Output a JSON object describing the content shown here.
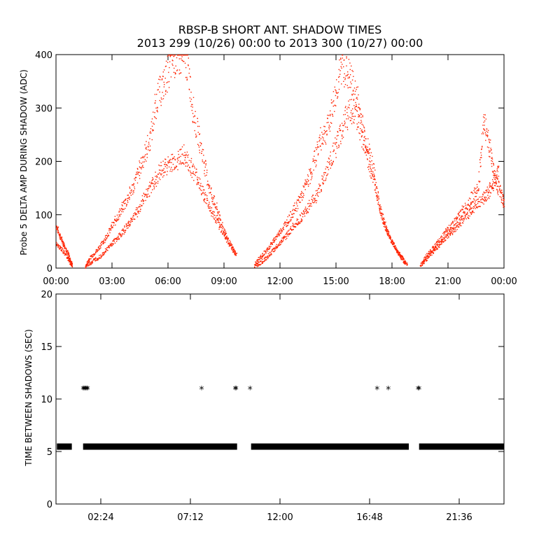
{
  "title": {
    "line1": "RBSP-B SHORT ANT. SHADOW TIMES",
    "line2": "2013 299 (10/26) 00:00 to 2013 300 (10/27) 00:00"
  },
  "chart_data": [
    {
      "type": "scatter",
      "ylabel": "Probe 5 DELTA AMP DURING SHADOW (ADC)",
      "xlabel": "",
      "xlim": [
        0,
        24
      ],
      "ylim": [
        0,
        400
      ],
      "xtick_labels": [
        "00:00",
        "03:00",
        "06:00",
        "09:00",
        "12:00",
        "15:00",
        "18:00",
        "21:00",
        "00:00"
      ],
      "ytick_labels": [
        "0",
        "100",
        "200",
        "300",
        "400"
      ],
      "grid": false,
      "marker_color": "#ff2200",
      "series": [
        {
          "x": [
            0.0,
            0.2,
            0.4,
            0.6,
            0.75,
            0.85,
            1.55,
            1.8,
            2.2,
            2.6,
            3.0,
            3.4,
            3.8,
            4.2,
            4.6,
            5.0,
            5.4,
            5.8,
            6.2,
            6.6,
            7.0,
            7.4,
            7.8,
            8.2,
            8.6,
            9.0,
            9.4,
            9.65,
            10.6,
            10.9,
            11.3,
            11.7,
            12.1,
            12.5,
            12.9,
            13.3,
            13.7,
            14.1,
            14.5,
            14.9,
            15.3,
            15.7,
            16.1,
            16.5,
            16.9,
            17.3,
            17.6,
            17.9,
            18.2,
            18.5,
            18.8,
            19.5,
            19.8,
            20.2,
            20.6,
            21.0,
            21.4,
            21.8,
            22.2,
            22.6,
            22.9,
            23.2,
            23.5,
            23.8,
            24.0
          ],
          "y": [
            80,
            60,
            45,
            30,
            15,
            5,
            3,
            20,
            35,
            55,
            80,
            105,
            130,
            160,
            200,
            240,
            320,
            350,
            390,
            395,
            385,
            280,
            220,
            150,
            110,
            70,
            40,
            25,
            5,
            20,
            35,
            55,
            75,
            95,
            120,
            150,
            185,
            240,
            260,
            320,
            380,
            360,
            320,
            250,
            200,
            120,
            80,
            55,
            35,
            20,
            8,
            5,
            22,
            40,
            55,
            75,
            90,
            110,
            130,
            150,
            280,
            230,
            170,
            140,
            120
          ]
        },
        {
          "x": [
            0.0,
            0.3,
            0.6,
            0.85,
            1.6,
            2.0,
            2.4,
            2.8,
            3.2,
            3.6,
            4.0,
            4.4,
            4.8,
            5.2,
            5.6,
            6.0,
            6.4,
            6.8,
            7.2,
            7.6,
            8.0,
            8.4,
            8.8,
            9.2,
            9.6,
            10.7,
            11.1,
            11.5,
            11.9,
            12.3,
            12.7,
            13.1,
            13.5,
            13.9,
            14.3,
            14.7,
            15.1,
            15.5,
            15.9,
            16.3,
            16.7,
            17.1,
            17.5,
            17.9,
            18.3,
            18.7,
            19.6,
            20.0,
            20.4,
            20.8,
            21.2,
            21.6,
            22.0,
            22.4,
            22.8,
            23.1,
            23.4,
            23.7
          ],
          "y": [
            45,
            35,
            20,
            5,
            5,
            15,
            25,
            40,
            55,
            70,
            90,
            110,
            140,
            160,
            185,
            195,
            200,
            215,
            190,
            165,
            130,
            100,
            75,
            50,
            25,
            5,
            15,
            30,
            45,
            60,
            80,
            95,
            115,
            135,
            165,
            205,
            240,
            280,
            300,
            260,
            200,
            150,
            90,
            55,
            30,
            10,
            8,
            25,
            40,
            55,
            70,
            85,
            100,
            115,
            130,
            140,
            160,
            180
          ]
        }
      ]
    },
    {
      "type": "scatter",
      "ylabel": "TIME BETWEEN SHADOWS (SEC)",
      "xlabel": "",
      "xlim": [
        0,
        24
      ],
      "ylim": [
        0,
        20
      ],
      "xtick_labels": [
        "02:24",
        "07:12",
        "12:00",
        "16:48",
        "21:36"
      ],
      "ytick_labels": [
        "0",
        "5",
        "10",
        "15",
        "20"
      ],
      "grid": false,
      "marker": "*",
      "marker_color": "#000000",
      "baseline_value": 5.5,
      "baseline_segments": [
        [
          0.05,
          0.85
        ],
        [
          1.45,
          9.7
        ],
        [
          10.45,
          18.9
        ],
        [
          19.45,
          24.0
        ]
      ],
      "points": {
        "x": [
          1.45,
          1.5,
          1.55,
          1.6,
          1.65,
          1.7,
          7.8,
          9.6,
          9.65,
          10.4,
          17.2,
          17.8,
          19.4,
          19.45
        ],
        "y": [
          10.9,
          10.9,
          10.9,
          10.9,
          10.9,
          10.9,
          10.9,
          10.9,
          10.9,
          10.9,
          10.9,
          10.9,
          10.9,
          10.9
        ]
      }
    }
  ]
}
